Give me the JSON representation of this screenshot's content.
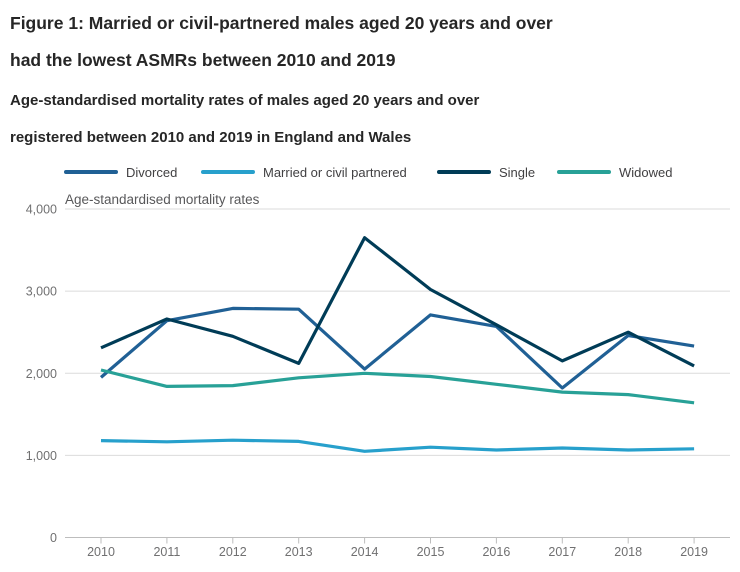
{
  "header": {
    "title_line1": "Figure 1: Married or civil-partnered males aged 20 years and over",
    "title_line2": "had the lowest ASMRs between 2010 and 2019",
    "subtitle_line1": "Age-standardised mortality rates of males aged 20 years and over",
    "subtitle_line2": "registered between 2010 and 2019 in England and Wales"
  },
  "chart_data": {
    "type": "line",
    "title": "Figure 1: Married or civil-partnered males aged 20 years and over had the lowest ASMRs between 2010 and 2019",
    "subtitle": "Age-standardised mortality rates of males aged 20 years and over registered between 2010 and 2019 in England and Wales",
    "ylabel": "Age-standardised mortality rates",
    "xlabel": "",
    "ylim": [
      0,
      4000
    ],
    "grid": true,
    "legend_position": "top",
    "x": [
      "2010",
      "2011",
      "2012",
      "2013",
      "2014",
      "2015",
      "2016",
      "2017",
      "2018",
      "2019"
    ],
    "y_ticks": [
      {
        "value": 0,
        "label": "0"
      },
      {
        "value": 1000,
        "label": "1,000"
      },
      {
        "value": 2000,
        "label": "2,000"
      },
      {
        "value": 3000,
        "label": "3,000"
      },
      {
        "value": 4000,
        "label": "4,000"
      }
    ],
    "series": [
      {
        "name": "Divorced",
        "color": "#206095",
        "values": [
          1950,
          2640,
          2790,
          2780,
          2050,
          2710,
          2570,
          1820,
          2460,
          2330
        ]
      },
      {
        "name": "Married or civil partnered",
        "color": "#27a0cc",
        "values": [
          1180,
          1165,
          1185,
          1170,
          1050,
          1100,
          1065,
          1090,
          1065,
          1080
        ]
      },
      {
        "name": "Single",
        "color": "#003c57",
        "values": [
          2310,
          2660,
          2450,
          2120,
          3650,
          3020,
          2590,
          2150,
          2500,
          2090
        ]
      },
      {
        "name": "Widowed",
        "color": "#28a197",
        "values": [
          2040,
          1840,
          1850,
          1945,
          2000,
          1960,
          1865,
          1770,
          1740,
          1640
        ]
      }
    ]
  },
  "colors": {
    "title_text": "#262626",
    "tick_text": "#707071",
    "axis_label_text": "#58585a",
    "legend_text": "#414042",
    "gridline": "#dbdbdb",
    "axis_line": "#bdbdbd",
    "background": "#ffffff"
  }
}
